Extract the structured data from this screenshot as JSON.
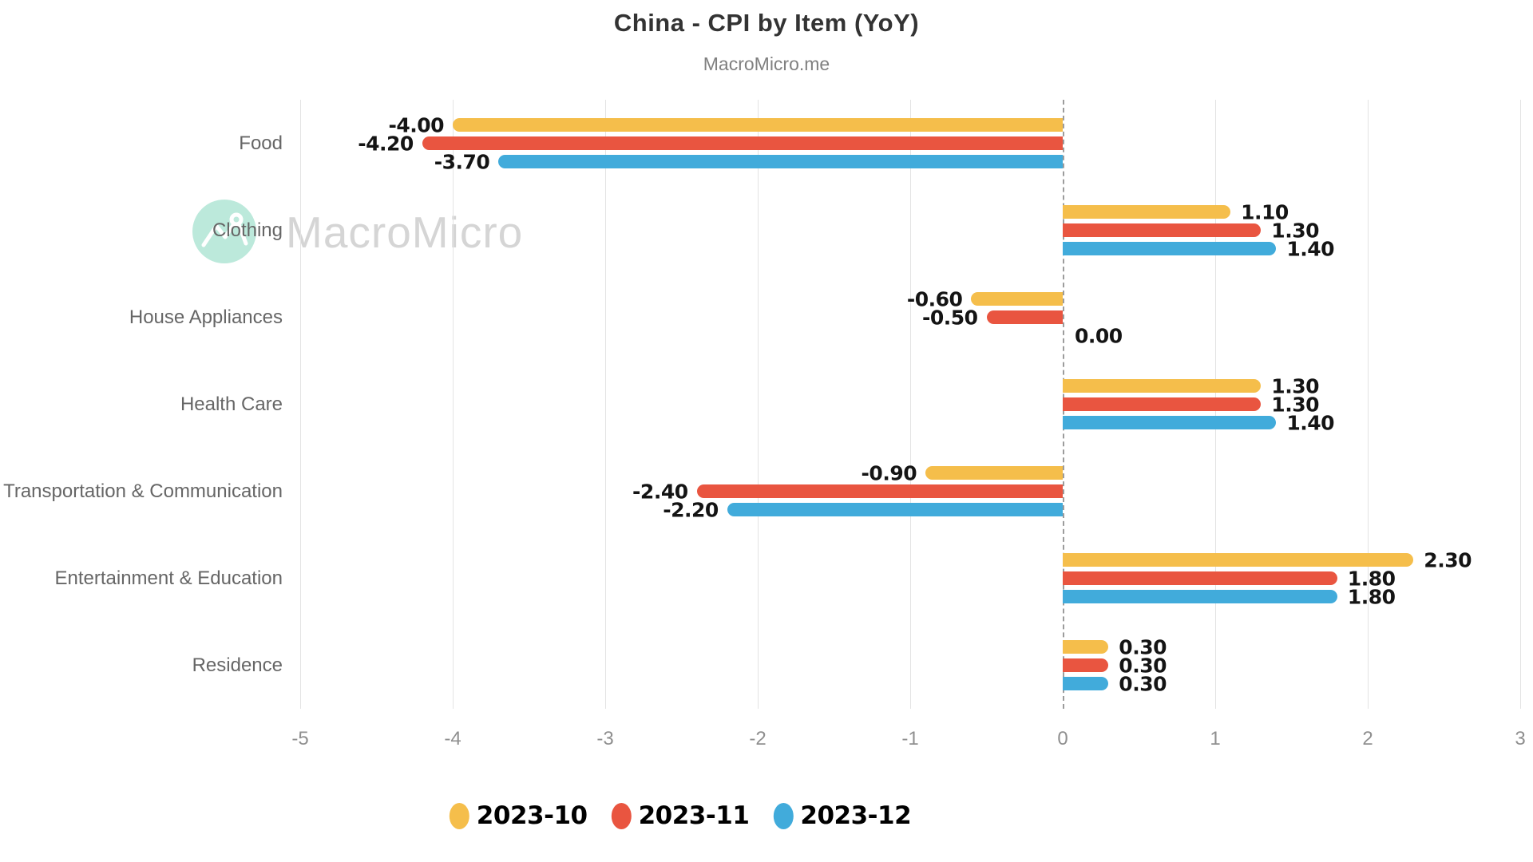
{
  "header": {
    "title": "China - CPI by Item (YoY)",
    "subtitle": "MacroMicro.me"
  },
  "watermark": {
    "text": "MacroMicro",
    "logo": "macromicro-mountain-logo",
    "circle_color": "#BCE9DB",
    "text_color": "#D5D5D5"
  },
  "chart_data": {
    "type": "bar",
    "orientation": "horizontal",
    "title": "China - CPI by Item (YoY)",
    "subtitle": "MacroMicro.me",
    "categories": [
      "Food",
      "Clothing",
      "House Appliances",
      "Health Care",
      "Transportation & Communication",
      "Entertainment & Education",
      "Residence"
    ],
    "series": [
      {
        "name": "2023-10",
        "color": "#F5BE4B",
        "values": [
          -4.0,
          1.1,
          -0.6,
          1.3,
          -0.9,
          2.3,
          0.3
        ]
      },
      {
        "name": "2023-11",
        "color": "#E95540",
        "values": [
          -4.2,
          1.3,
          -0.5,
          1.3,
          -2.4,
          1.8,
          0.3
        ]
      },
      {
        "name": "2023-12",
        "color": "#41ABDB",
        "values": [
          -3.7,
          1.4,
          0.0,
          1.4,
          -2.2,
          1.8,
          0.3
        ]
      }
    ],
    "xlim": [
      -5,
      3
    ],
    "xticks": [
      -5,
      -4,
      -3,
      -2,
      -1,
      0,
      1,
      2,
      3
    ],
    "value_label_format": "two_decimals",
    "grid": "vertical_gridlines_only",
    "zero_line": "dashed_gray",
    "legend_position": "bottom",
    "gridline_color": "#E3E3E3",
    "zero_line_color": "#9C9C9C"
  }
}
